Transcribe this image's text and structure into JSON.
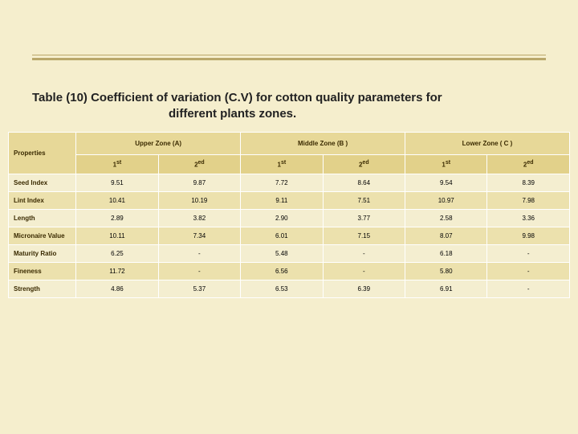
{
  "title_line1": "Table (10) Coefficient of variation (C.V) for cotton quality parameters for",
  "title_line2": "different plants zones.",
  "headers": {
    "properties": "Properties",
    "zones": [
      "Upper Zone (A)",
      "Middle Zone (B )",
      "Lower Zone ( C )"
    ],
    "sub": [
      "1",
      "st",
      "2",
      "ed",
      "1",
      "st",
      "2",
      "ed",
      "1",
      "st",
      "2",
      "ed"
    ]
  },
  "rows": [
    {
      "prop": "Seed Index",
      "v": [
        "9.51",
        "9.87",
        "7.72",
        "8.64",
        "9.54",
        "8.39"
      ]
    },
    {
      "prop": "Lint Index",
      "v": [
        "10.41",
        "10.19",
        "9.11",
        "7.51",
        "10.97",
        "7.98"
      ]
    },
    {
      "prop": "Length",
      "v": [
        "2.89",
        "3.82",
        "2.90",
        "3.77",
        "2.58",
        "3.36"
      ]
    },
    {
      "prop": "Micronaire Value",
      "v": [
        "10.11",
        "7.34",
        "6.01",
        "7.15",
        "8.07",
        "9.98"
      ]
    },
    {
      "prop": "Maturity Ratio",
      "v": [
        "6.25",
        "-",
        "5.48",
        "-",
        "6.18",
        "-"
      ]
    },
    {
      "prop": "Fineness",
      "v": [
        "11.72",
        "-",
        "6.56",
        "-",
        "5.80",
        "-"
      ]
    },
    {
      "prop": "Strength",
      "v": [
        "4.86",
        "5.37",
        "6.53",
        "6.39",
        "6.91",
        "-"
      ]
    }
  ],
  "colors": {
    "bg": "#f5eecd",
    "rule": "#b9a76a",
    "hdr1": "#e7d898",
    "hdr2": "#e2d18a",
    "row_even": "#f4eed0",
    "row_odd": "#ece1ad"
  },
  "col_widths": {
    "prop_pct": 12,
    "data_pct": 14.6
  }
}
